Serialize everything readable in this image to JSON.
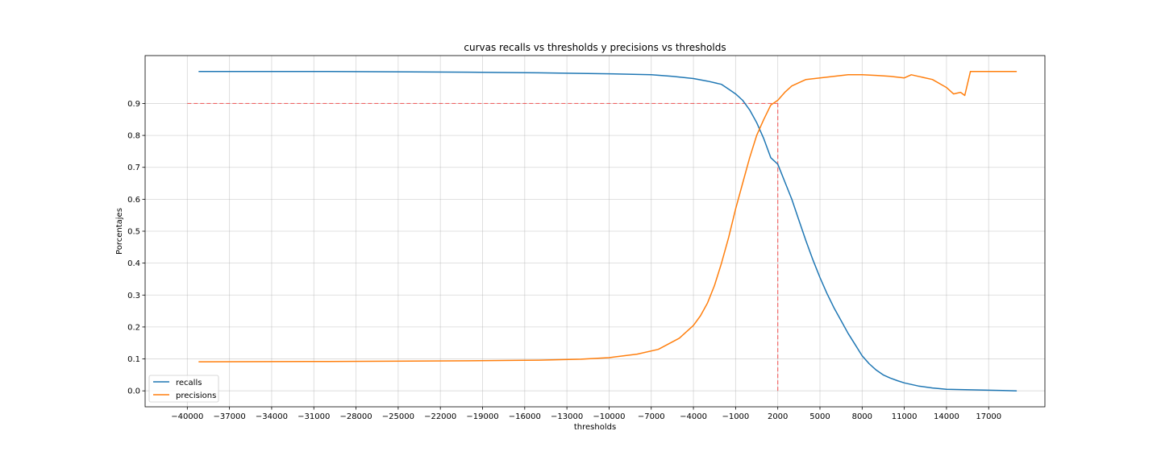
{
  "chart_data": {
    "type": "line",
    "title": "curvas recalls vs thresholds y precisions vs thresholds",
    "xlabel": "thresholds",
    "ylabel": "Porcentajes",
    "xlim": [
      -43000,
      21000
    ],
    "ylim": [
      -0.05,
      1.05
    ],
    "xticks": [
      -40000,
      -37000,
      -34000,
      -31000,
      -28000,
      -25000,
      -22000,
      -19000,
      -16000,
      -13000,
      -10000,
      -7000,
      -4000,
      -1000,
      2000,
      5000,
      8000,
      11000,
      14000,
      17000
    ],
    "xtick_labels": [
      "−40000",
      "−37000",
      "−34000",
      "−31000",
      "−28000",
      "−25000",
      "−22000",
      "−19000",
      "−16000",
      "−13000",
      "−10000",
      "−7000",
      "−4000",
      "−1000",
      "2000",
      "5000",
      "8000",
      "11000",
      "14000",
      "17000"
    ],
    "yticks": [
      0.0,
      0.1,
      0.2,
      0.3,
      0.4,
      0.5,
      0.6,
      0.7,
      0.8,
      0.9
    ],
    "ytick_labels": [
      "0.0",
      "0.1",
      "0.2",
      "0.3",
      "0.4",
      "0.5",
      "0.6",
      "0.7",
      "0.8",
      "0.9"
    ],
    "grid": true,
    "legend_position": "lower-left",
    "series": [
      {
        "name": "recalls",
        "color": "#1f77b4",
        "x": [
          -39200,
          -30000,
          -20000,
          -15000,
          -10000,
          -7000,
          -5500,
          -4000,
          -3000,
          -2000,
          -1500,
          -1000,
          -500,
          0,
          500,
          1000,
          1500,
          2000,
          2500,
          3000,
          3500,
          4000,
          4500,
          5000,
          5500,
          6000,
          6500,
          7000,
          7500,
          8000,
          8500,
          9000,
          9500,
          10000,
          10500,
          11000,
          12000,
          13000,
          14000,
          15000,
          16000,
          17000,
          18000,
          19000
        ],
        "y": [
          1.0,
          1.0,
          0.998,
          0.996,
          0.993,
          0.99,
          0.985,
          0.978,
          0.97,
          0.96,
          0.945,
          0.93,
          0.91,
          0.88,
          0.84,
          0.79,
          0.73,
          0.71,
          0.655,
          0.6,
          0.535,
          0.47,
          0.41,
          0.355,
          0.305,
          0.26,
          0.22,
          0.18,
          0.145,
          0.11,
          0.085,
          0.065,
          0.05,
          0.04,
          0.032,
          0.025,
          0.015,
          0.009,
          0.005,
          0.004,
          0.003,
          0.002,
          0.001,
          0.0
        ]
      },
      {
        "name": "precisions",
        "color": "#ff7f0e",
        "x": [
          -39200,
          -30000,
          -20000,
          -15000,
          -12000,
          -10000,
          -8000,
          -6500,
          -5000,
          -4000,
          -3500,
          -3000,
          -2500,
          -2000,
          -1500,
          -1000,
          -500,
          0,
          500,
          1000,
          1500,
          2000,
          2500,
          3000,
          3500,
          4000,
          5000,
          6000,
          7000,
          8000,
          9000,
          10000,
          11000,
          11500,
          12000,
          13000,
          14000,
          14500,
          15000,
          15300,
          15700,
          16500,
          18000,
          19000
        ],
        "y": [
          0.091,
          0.092,
          0.094,
          0.096,
          0.099,
          0.104,
          0.115,
          0.13,
          0.165,
          0.205,
          0.235,
          0.275,
          0.33,
          0.4,
          0.48,
          0.57,
          0.65,
          0.73,
          0.8,
          0.85,
          0.895,
          0.91,
          0.935,
          0.955,
          0.965,
          0.975,
          0.98,
          0.985,
          0.99,
          0.99,
          0.988,
          0.985,
          0.98,
          0.99,
          0.985,
          0.975,
          0.95,
          0.93,
          0.935,
          0.925,
          1.0,
          1.0,
          1.0,
          1.0
        ]
      }
    ],
    "reference_lines": [
      {
        "type": "horizontal",
        "y": 0.9,
        "x_from": -40000,
        "x_to": 2000,
        "color": "#ff0000"
      },
      {
        "type": "vertical",
        "x": 2000,
        "y_from": 0.0,
        "y_to": 0.9,
        "color": "#ff0000"
      }
    ]
  }
}
